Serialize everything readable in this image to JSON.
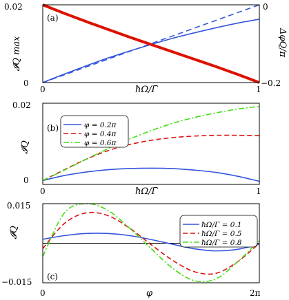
{
  "chart_data": [
    {
      "panel_label": "(a)",
      "type": "line",
      "xlabel": "ħΩ/Γ̄",
      "ylabel": "𝓘Q max",
      "ylabel_right": "ΔφQ/π",
      "xlim": [
        0,
        1
      ],
      "ylim": [
        0,
        0.02
      ],
      "ylim_right": [
        -0.2,
        0
      ],
      "xticks": [
        "0",
        "1"
      ],
      "yticks": [
        "0",
        "0.02"
      ],
      "yticks_right": [
        "−0.2",
        "0"
      ],
      "series": [
        {
          "axis": "left",
          "color": "#3355dd",
          "dash": "solid",
          "width": 1.6,
          "x": [
            0,
            0.1,
            0.2,
            0.3,
            0.4,
            0.5,
            0.6,
            0.7,
            0.8,
            0.9,
            1.0
          ],
          "y": [
            0,
            0.0022,
            0.0043,
            0.0063,
            0.0081,
            0.0098,
            0.0114,
            0.0128,
            0.0141,
            0.0153,
            0.0163
          ]
        },
        {
          "axis": "right",
          "color": "#3355dd",
          "dash": "8,5",
          "width": 1.6,
          "x": [
            0,
            0.1,
            0.2,
            0.3,
            0.4,
            0.5,
            0.6,
            0.7,
            0.8,
            0.9,
            1.0
          ],
          "y": [
            -0.2,
            -0.18,
            -0.16,
            -0.14,
            -0.12,
            -0.1,
            -0.08,
            -0.06,
            -0.04,
            -0.02,
            0
          ]
        },
        {
          "axis": "left",
          "color": "#dd1100",
          "dash": "solid",
          "width": 4,
          "x": [
            0,
            0.1,
            0.2,
            0.3,
            0.4,
            0.5,
            0.6,
            0.7,
            0.8,
            0.9,
            1.0
          ],
          "y": [
            0.02,
            0.0178,
            0.0157,
            0.0137,
            0.0117,
            0.0098,
            0.0079,
            0.006,
            0.0041,
            0.0021,
            0
          ]
        }
      ]
    },
    {
      "panel_label": "(b)",
      "type": "line",
      "xlabel": "ħΩ/Γ̄",
      "ylabel": "𝓘Q",
      "xlim": [
        0,
        1
      ],
      "ylim": [
        -0.001,
        0.02
      ],
      "xticks": [
        "0",
        "1"
      ],
      "yticks": [
        "0",
        "0.02"
      ],
      "legend": "top-left",
      "series": [
        {
          "name": "φ = 0.2π",
          "color": "#3355dd",
          "dash": "solid",
          "width": 1.6,
          "x": [
            0,
            0.1,
            0.2,
            0.3,
            0.4,
            0.5,
            0.6,
            0.7,
            0.8,
            0.9,
            1.0
          ],
          "y": [
            0,
            0.0013,
            0.0022,
            0.0028,
            0.0031,
            0.0032,
            0.0031,
            0.0027,
            0.0021,
            0.0011,
            -0.0002
          ]
        },
        {
          "name": "φ = 0.4π",
          "color": "#dd1111",
          "dash": "7,4",
          "width": 1.6,
          "x": [
            0,
            0.1,
            0.2,
            0.3,
            0.4,
            0.5,
            0.6,
            0.7,
            0.8,
            0.9,
            1.0
          ],
          "y": [
            0,
            0.0028,
            0.0055,
            0.0077,
            0.0093,
            0.0104,
            0.0111,
            0.0115,
            0.0117,
            0.0117,
            0.0116
          ]
        },
        {
          "name": "φ = 0.6π",
          "color": "#44dd11",
          "dash": "8,3,2,3",
          "width": 1.6,
          "x": [
            0,
            0.1,
            0.2,
            0.3,
            0.4,
            0.5,
            0.6,
            0.7,
            0.8,
            0.9,
            1.0
          ],
          "y": [
            0,
            0.0027,
            0.0055,
            0.0082,
            0.0107,
            0.0129,
            0.0148,
            0.0163,
            0.0175,
            0.0185,
            0.0192
          ]
        }
      ]
    },
    {
      "panel_label": "(c)",
      "type": "line",
      "xlabel": "φ",
      "ylabel": "𝓘Q",
      "xlim": [
        0,
        2
      ],
      "ylim": [
        -0.015,
        0.015
      ],
      "xticks": [
        "0",
        "2π"
      ],
      "yticks": [
        "0.015",
        "−0.015"
      ],
      "legend": "top-right",
      "zero_line": true,
      "series": [
        {
          "name": "ħΩ/Γ = 0.1",
          "color": "#3355dd",
          "dash": "solid",
          "width": 1.6,
          "x": [
            0,
            0.2,
            0.4,
            0.6,
            0.8,
            1.0,
            1.2,
            1.4,
            1.6,
            1.8,
            2.0
          ],
          "y": [
            0.0015,
            0.0029,
            0.0037,
            0.0037,
            0.0029,
            0.0014,
            -0.0004,
            -0.0021,
            -0.0029,
            -0.0023,
            -0.0004
          ]
        },
        {
          "name": "ħΩ/Γ = 0.5",
          "color": "#dd1111",
          "dash": "7,4",
          "width": 1.6,
          "x": [
            0,
            0.2,
            0.4,
            0.6,
            0.8,
            1.0,
            1.2,
            1.4,
            1.6,
            1.8,
            2.0
          ],
          "y": [
            -0.002,
            0.0075,
            0.0115,
            0.0105,
            0.0058,
            -0.0005,
            -0.0065,
            -0.0108,
            -0.0114,
            -0.007,
            0.0
          ]
        },
        {
          "name": "ħΩ/Γ = 0.8",
          "color": "#44dd11",
          "dash": "8,3,2,3",
          "width": 1.6,
          "x": [
            0,
            0.2,
            0.4,
            0.6,
            0.8,
            1.0,
            1.2,
            1.4,
            1.6,
            1.8,
            2.0
          ],
          "y": [
            -0.005,
            0.0115,
            0.015,
            0.0125,
            0.0058,
            -0.002,
            -0.0095,
            -0.0142,
            -0.0135,
            -0.007,
            0.001
          ]
        }
      ]
    }
  ]
}
